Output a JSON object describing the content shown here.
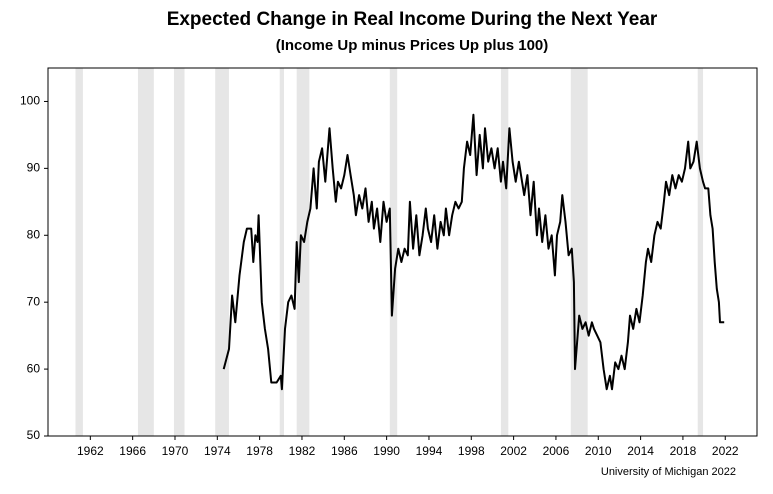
{
  "chart_data": {
    "type": "line",
    "title": "Expected Change in Real Income During the Next Year",
    "subtitle": "(Income Up minus Prices Up plus 100)",
    "source": "University of Michigan 2022",
    "color": "#000000",
    "band_color": "#e6e6e6",
    "xlim": [
      1958,
      2025
    ],
    "xticks": [
      1962,
      1966,
      1970,
      1974,
      1978,
      1982,
      1986,
      1990,
      1994,
      1998,
      2002,
      2006,
      2010,
      2014,
      2018,
      2022
    ],
    "ylim": [
      50,
      105
    ],
    "yticks": [
      50,
      60,
      70,
      80,
      90,
      100
    ],
    "recessions": [
      [
        1960.6,
        1961.3
      ],
      [
        1966.5,
        1968.0
      ],
      [
        1969.9,
        1970.9
      ],
      [
        1973.8,
        1975.1
      ],
      [
        1979.9,
        1980.3
      ],
      [
        1981.5,
        1982.7
      ],
      [
        1990.3,
        1991.0
      ],
      [
        2000.8,
        2001.5
      ],
      [
        2007.4,
        2009.0
      ],
      [
        2019.4,
        2019.9
      ]
    ],
    "x": [
      1974.6,
      1975.1,
      1975.4,
      1975.7,
      1976.1,
      1976.5,
      1976.8,
      1977.2,
      1977.4,
      1977.6,
      1977.8,
      1977.9,
      1978.2,
      1978.5,
      1978.8,
      1979.1,
      1979.6,
      1980.0,
      1980.1,
      1980.4,
      1980.7,
      1981.0,
      1981.3,
      1981.5,
      1981.7,
      1981.9,
      1982.2,
      1982.5,
      1982.8,
      1983.1,
      1983.4,
      1983.6,
      1983.9,
      1984.2,
      1984.6,
      1984.9,
      1985.2,
      1985.4,
      1985.7,
      1986.0,
      1986.3,
      1986.6,
      1986.9,
      1987.1,
      1987.4,
      1987.7,
      1988.0,
      1988.3,
      1988.6,
      1988.8,
      1989.1,
      1989.4,
      1989.7,
      1990.0,
      1990.3,
      1990.5,
      1990.8,
      1991.1,
      1991.4,
      1991.7,
      1992.0,
      1992.2,
      1992.5,
      1992.8,
      1993.1,
      1993.4,
      1993.7,
      1993.9,
      1994.2,
      1994.5,
      1994.8,
      1995.1,
      1995.4,
      1995.6,
      1995.9,
      1996.2,
      1996.5,
      1996.8,
      1997.1,
      1997.3,
      1997.6,
      1997.9,
      1998.2,
      1998.5,
      1998.8,
      1999.1,
      1999.3,
      1999.6,
      1999.9,
      2000.2,
      2000.5,
      2000.8,
      2001.0,
      2001.3,
      2001.6,
      2001.9,
      2002.2,
      2002.5,
      2002.7,
      2003.0,
      2003.3,
      2003.6,
      2003.9,
      2004.2,
      2004.4,
      2004.7,
      2005.0,
      2005.3,
      2005.6,
      2005.9,
      2006.1,
      2006.4,
      2006.6,
      2006.9,
      2007.2,
      2007.5,
      2007.7,
      2007.8,
      2008.0,
      2008.2,
      2008.5,
      2008.8,
      2009.1,
      2009.4,
      2009.6,
      2009.9,
      2010.2,
      2010.5,
      2010.8,
      2011.1,
      2011.3,
      2011.6,
      2011.9,
      2012.2,
      2012.5,
      2012.8,
      2013.0,
      2013.3,
      2013.6,
      2013.9,
      2014.2,
      2014.5,
      2014.7,
      2015.0,
      2015.3,
      2015.6,
      2015.9,
      2016.2,
      2016.4,
      2016.7,
      2017.0,
      2017.3,
      2017.6,
      2017.9,
      2018.2,
      2018.5,
      2018.7,
      2019.0,
      2019.3,
      2019.6,
      2019.9,
      2020.1,
      2020.4,
      2020.6,
      2020.8,
      2021.0,
      2021.2,
      2021.4,
      2021.5,
      2021.9
    ],
    "values": [
      60,
      63,
      71,
      67,
      74,
      79,
      81,
      81,
      76,
      80,
      79,
      83,
      70,
      66,
      63,
      58,
      58,
      59,
      57,
      66,
      70,
      71,
      69,
      79,
      73,
      80,
      79,
      82,
      84,
      90,
      84,
      91,
      93,
      88,
      96,
      90,
      85,
      88,
      87,
      89,
      92,
      89,
      86,
      83,
      86,
      84,
      87,
      82,
      85,
      81,
      84,
      79,
      85,
      82,
      84,
      68,
      75,
      78,
      76,
      78,
      77,
      85,
      78,
      83,
      77,
      80,
      84,
      81,
      79,
      83,
      78,
      82,
      80,
      84,
      80,
      83,
      85,
      84,
      85,
      90,
      94,
      92,
      98,
      89,
      95,
      90,
      96,
      91,
      93,
      90,
      93,
      88,
      91,
      87,
      96,
      91,
      88,
      91,
      89,
      86,
      89,
      83,
      88,
      80,
      84,
      79,
      83,
      78,
      80,
      74,
      80,
      82,
      86,
      82,
      77,
      78,
      73,
      60,
      64,
      68,
      66,
      67,
      65,
      67,
      66,
      65,
      64,
      60,
      57,
      59,
      57,
      61,
      60,
      62,
      60,
      64,
      68,
      66,
      69,
      67,
      71,
      76,
      78,
      76,
      80,
      82,
      81,
      85,
      88,
      86,
      89,
      87,
      89,
      88,
      90,
      94,
      90,
      91,
      94,
      90,
      88,
      87,
      87,
      83,
      81,
      76,
      72,
      70,
      67,
      67
    ]
  }
}
